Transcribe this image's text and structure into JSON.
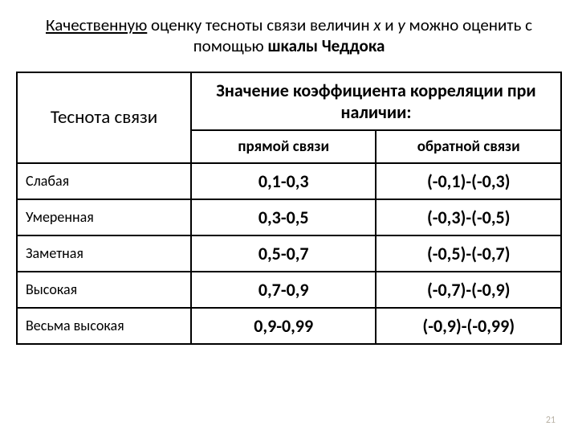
{
  "title": {
    "part1_underlined": "Качественную",
    "part2": " оценку тесноты связи величин ",
    "var1": "х",
    "and": " и ",
    "var2": "у",
    "part3": " можно оценить с помощью ",
    "part4_bold": "шкалы Чеддока"
  },
  "table": {
    "row_header": "Теснота связи",
    "group_header": "Значение коэффициента корреляции при наличии:",
    "sub_headers": [
      "прямой связи",
      "обратной связи"
    ],
    "rows": [
      {
        "label": "Слабая",
        "direct": "0,1-0,3",
        "inverse": "(-0,1)-(-0,3)"
      },
      {
        "label": "Умеренная",
        "direct": "0,3-0,5",
        "inverse": "(-0,3)-(-0,5)"
      },
      {
        "label": "Заметная",
        "direct": "0,5-0,7",
        "inverse": "(-0,5)-(-0,7)"
      },
      {
        "label": "Высокая",
        "direct": "0,7-0,9",
        "inverse": "(-0,7)-(-0,9)"
      },
      {
        "label": "Весьма высокая",
        "direct": "0,9-0,99",
        "inverse": "(-0,9)-(-0,99)"
      }
    ]
  },
  "page_number": "21",
  "colors": {
    "background": "#ffffff",
    "text": "#000000",
    "border": "#000000",
    "pagenum": "#b9b2a6"
  }
}
